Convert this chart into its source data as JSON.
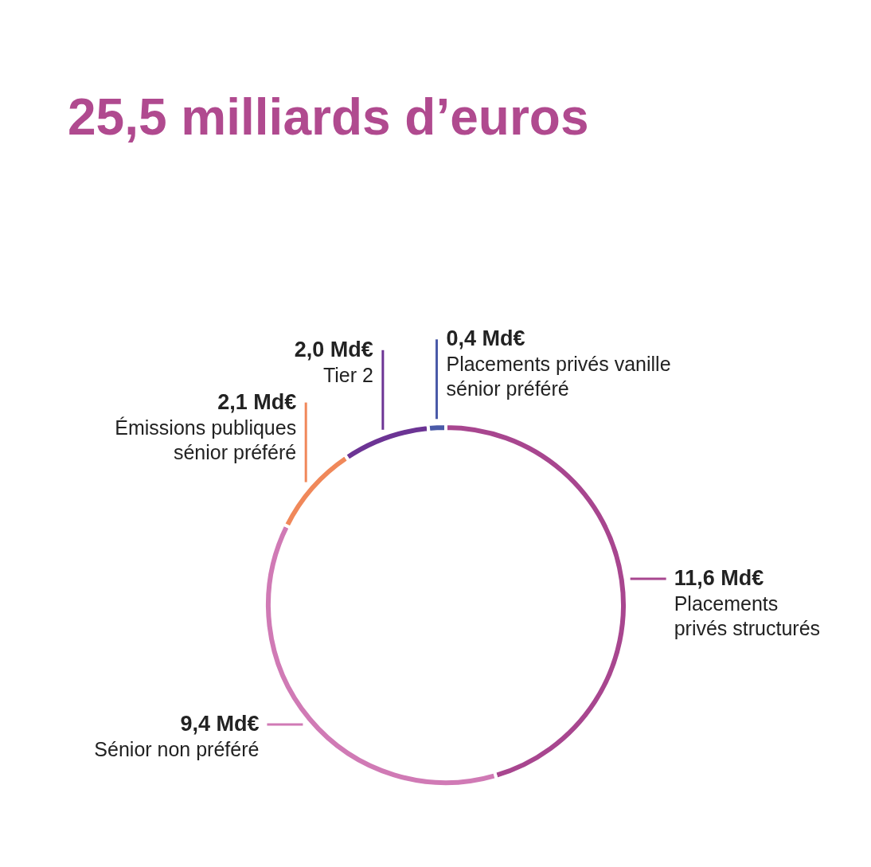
{
  "chart_data": {
    "type": "donut",
    "title": "25,5 milliards d’euros",
    "categories": [
      "Placements\nprivés structurés",
      "Sénior non préféré",
      "Émissions publiques\nsénior préféré",
      "Tier 2",
      "Placements privés vanille\nsénior préféré"
    ],
    "values": [
      11.6,
      9.4,
      2.1,
      2.0,
      0.4
    ],
    "value_labels": [
      "11,6 Md€",
      "9,4 Md€",
      "2,1 Md€",
      "2,0 Md€",
      "0,4 Md€"
    ],
    "colors": [
      "#a8468f",
      "#d07ab5",
      "#f0885a",
      "#6c3494",
      "#4a5aa8"
    ]
  }
}
